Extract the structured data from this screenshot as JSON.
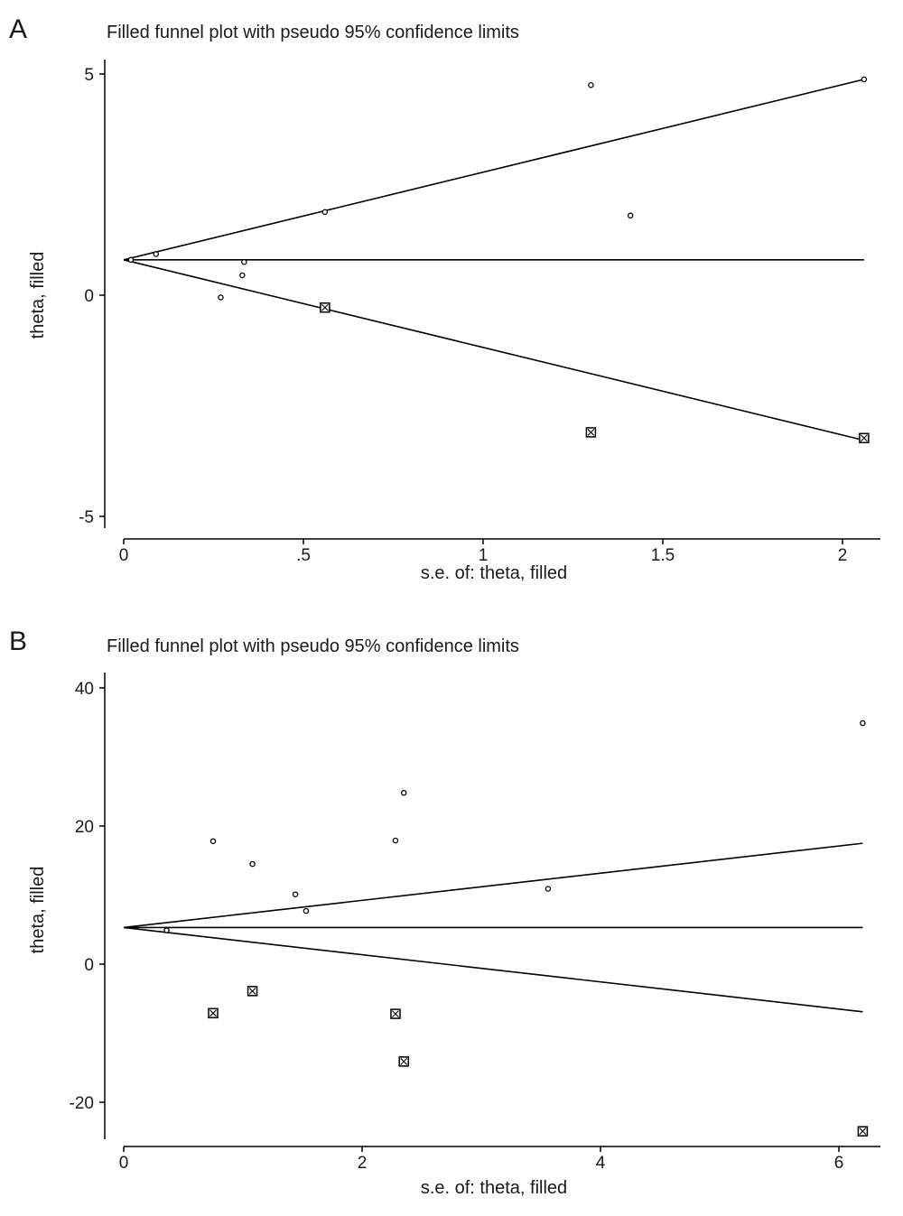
{
  "panels": [
    {
      "letter": "A",
      "title": "Filled funnel plot with pseudo 95% confidence limits",
      "xlabel": "s.e. of: theta, filled",
      "ylabel": "theta, filled",
      "xticks": [
        "0",
        ".5",
        "1",
        "1.5",
        "2"
      ],
      "yticks": [
        "5",
        "0",
        "-5"
      ]
    },
    {
      "letter": "B",
      "title": "Filled funnel plot with pseudo 95% confidence limits",
      "xlabel": "s.e. of: theta, filled",
      "ylabel": "theta, filled",
      "xticks": [
        "0",
        "2",
        "4",
        "6"
      ],
      "yticks": [
        "40",
        "20",
        "0",
        "-20"
      ]
    }
  ],
  "chart_data": [
    {
      "type": "scatter",
      "title": "Filled funnel plot with pseudo 95% confidence limits",
      "xlabel": "s.e. of: theta, filled",
      "ylabel": "theta, filled",
      "xlim": [
        0,
        2.1
      ],
      "ylim": [
        -5,
        5
      ],
      "xticks": [
        0,
        0.5,
        1,
        1.5,
        2
      ],
      "yticks": [
        5,
        0,
        -5
      ],
      "pooled_estimate": 0.8,
      "confidence_limits": {
        "se_max": 2.06,
        "upper_at_max": 4.88,
        "lower_at_max": -3.28
      },
      "observed": [
        {
          "x": 0.02,
          "y": 0.8
        },
        {
          "x": 0.09,
          "y": 0.93
        },
        {
          "x": 0.27,
          "y": -0.05
        },
        {
          "x": 0.33,
          "y": 0.45
        },
        {
          "x": 0.335,
          "y": 0.75
        },
        {
          "x": 0.56,
          "y": 1.88
        },
        {
          "x": 1.3,
          "y": 4.75
        },
        {
          "x": 1.41,
          "y": 1.8
        },
        {
          "x": 2.06,
          "y": 4.88
        }
      ],
      "filled": [
        {
          "x": 0.56,
          "y": -0.28
        },
        {
          "x": 1.3,
          "y": -3.1
        },
        {
          "x": 2.06,
          "y": -3.23
        }
      ]
    },
    {
      "type": "scatter",
      "title": "Filled funnel plot with pseudo 95% confidence limits",
      "xlabel": "s.e. of: theta, filled",
      "ylabel": "theta, filled",
      "xlim": [
        0,
        6.3
      ],
      "ylim": [
        -26,
        42
      ],
      "xticks": [
        0,
        2,
        4,
        6
      ],
      "yticks": [
        40,
        20,
        0,
        -20
      ],
      "pooled_estimate": 5.3,
      "confidence_limits": {
        "se_max": 6.2,
        "upper_at_max": 17.5,
        "lower_at_max": -6.9
      },
      "observed": [
        {
          "x": 0.36,
          "y": 4.9
        },
        {
          "x": 0.75,
          "y": 17.8
        },
        {
          "x": 1.08,
          "y": 14.5
        },
        {
          "x": 1.44,
          "y": 10.1
        },
        {
          "x": 1.53,
          "y": 7.7
        },
        {
          "x": 2.28,
          "y": 17.9
        },
        {
          "x": 2.35,
          "y": 24.8
        },
        {
          "x": 3.56,
          "y": 10.9
        },
        {
          "x": 6.2,
          "y": 34.9
        }
      ],
      "filled": [
        {
          "x": 0.75,
          "y": -7.1
        },
        {
          "x": 1.08,
          "y": -3.9
        },
        {
          "x": 2.28,
          "y": -7.2
        },
        {
          "x": 2.35,
          "y": -14.1
        },
        {
          "x": 6.2,
          "y": -24.2
        }
      ]
    }
  ]
}
